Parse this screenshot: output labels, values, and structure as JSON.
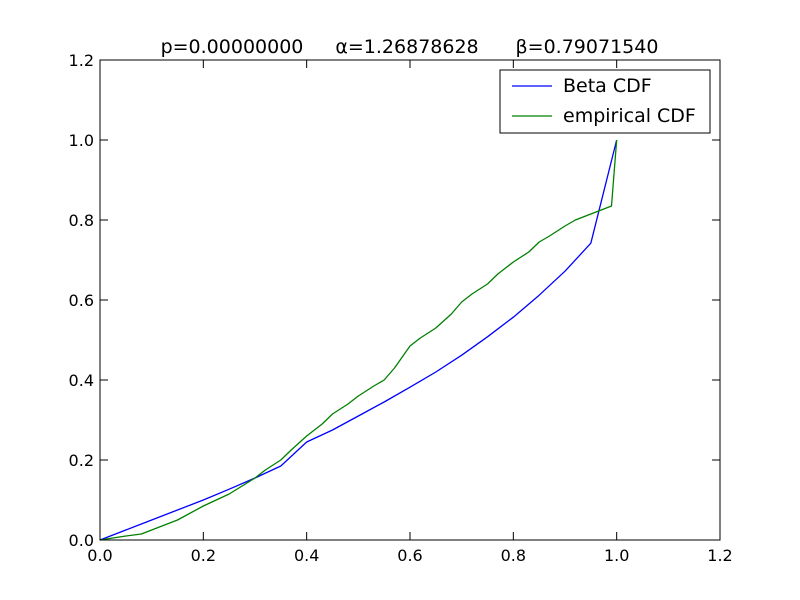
{
  "chart_data": {
    "type": "line",
    "title": {
      "p": "p=0.00000000",
      "alpha": "α=1.26878628",
      "beta": "β=0.79071540"
    },
    "xlabel": "",
    "ylabel": "",
    "xlim": [
      0.0,
      1.2
    ],
    "ylim": [
      0.0,
      1.2
    ],
    "xticks": [
      0.0,
      0.2,
      0.4,
      0.6,
      0.8,
      1.0,
      1.2
    ],
    "yticks": [
      0.0,
      0.2,
      0.4,
      0.6,
      0.8,
      1.0,
      1.2
    ],
    "xtick_labels": [
      "0.0",
      "0.2",
      "0.4",
      "0.6",
      "0.8",
      "1.0",
      "1.2"
    ],
    "ytick_labels": [
      "0.0",
      "0.2",
      "0.4",
      "0.6",
      "0.8",
      "1.0",
      "1.2"
    ],
    "grid": false,
    "legend_position": "top-right",
    "series": [
      {
        "name": "Beta CDF",
        "color": "#0000ff",
        "x": [
          0.0,
          0.05,
          0.1,
          0.15,
          0.2,
          0.25,
          0.3,
          0.35,
          0.4,
          0.45,
          0.5,
          0.55,
          0.6,
          0.65,
          0.7,
          0.75,
          0.8,
          0.85,
          0.9,
          0.95,
          1.0
        ],
        "y": [
          0.0,
          0.025,
          0.05,
          0.075,
          0.1,
          0.127,
          0.155,
          0.185,
          0.245,
          0.275,
          0.31,
          0.345,
          0.382,
          0.42,
          0.462,
          0.508,
          0.557,
          0.612,
          0.672,
          0.742,
          1.0
        ]
      },
      {
        "name": "empirical CDF",
        "color": "#008000",
        "x": [
          0.0,
          0.05,
          0.08,
          0.1,
          0.15,
          0.2,
          0.25,
          0.3,
          0.32,
          0.35,
          0.37,
          0.4,
          0.43,
          0.45,
          0.48,
          0.5,
          0.53,
          0.55,
          0.57,
          0.6,
          0.62,
          0.65,
          0.68,
          0.7,
          0.72,
          0.75,
          0.77,
          0.8,
          0.83,
          0.85,
          0.87,
          0.9,
          0.92,
          0.95,
          0.97,
          0.99,
          1.0
        ],
        "y": [
          0.0,
          0.01,
          0.015,
          0.025,
          0.05,
          0.085,
          0.115,
          0.155,
          0.175,
          0.2,
          0.225,
          0.26,
          0.29,
          0.315,
          0.34,
          0.36,
          0.385,
          0.4,
          0.43,
          0.485,
          0.505,
          0.53,
          0.565,
          0.595,
          0.615,
          0.64,
          0.665,
          0.695,
          0.72,
          0.745,
          0.76,
          0.785,
          0.8,
          0.815,
          0.825,
          0.835,
          1.0
        ]
      }
    ]
  }
}
